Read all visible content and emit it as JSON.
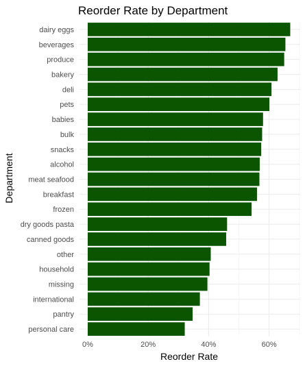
{
  "chart_data": {
    "type": "bar",
    "orientation": "horizontal",
    "title": "Reorder Rate by Department",
    "xlabel": "Reorder Rate",
    "ylabel": "Department",
    "bar_color": "#0b5500",
    "grid": true,
    "xlim": [
      0,
      0.7
    ],
    "xticks": [
      0,
      0.2,
      0.4,
      0.6
    ],
    "xtick_labels": [
      "0%",
      "20%",
      "40%",
      "60%"
    ],
    "categories": [
      "dairy eggs",
      "beverages",
      "produce",
      "bakery",
      "deli",
      "pets",
      "babies",
      "bulk",
      "snacks",
      "alcohol",
      "meat seafood",
      "breakfast",
      "frozen",
      "dry goods pasta",
      "canned goods",
      "other",
      "household",
      "missing",
      "international",
      "pantry",
      "personal care"
    ],
    "values": [
      0.67,
      0.654,
      0.65,
      0.628,
      0.608,
      0.601,
      0.58,
      0.577,
      0.574,
      0.569,
      0.568,
      0.56,
      0.542,
      0.461,
      0.458,
      0.407,
      0.403,
      0.396,
      0.371,
      0.347,
      0.321
    ]
  }
}
